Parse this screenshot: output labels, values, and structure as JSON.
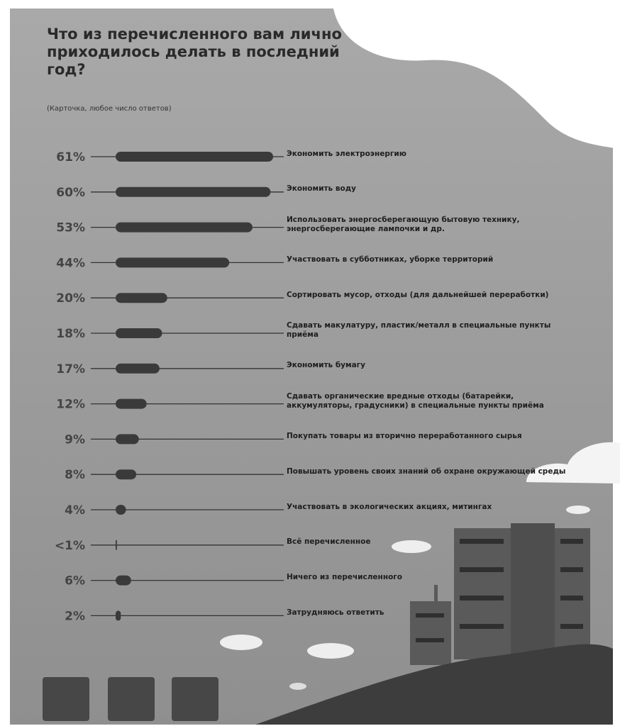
{
  "chart_data": {
    "type": "bar",
    "orientation": "horizontal",
    "title": "Что из перечисленного вам лично приходилось делать в последний год?",
    "subtitle": "(Карточка, любое число ответов)",
    "categories": [
      "Экономить электроэнергию",
      "Экономить воду",
      "Использовать энергосберегающую бытовую технику, энергосберегающие лампочки и др.",
      "Участвовать в субботниках, уборке территорий",
      "Сортировать мусор, отходы (для дальнейшей переработки)",
      "Сдавать макулатуру, пластик/металл в специальные пункты приёма",
      "Экономить бумагу",
      "Сдавать органические вредные отходы (батарейки, аккумуляторы, градусники) в специальные пункты приёма",
      "Покупать товары из вторично переработанного сырья",
      "Повышать уровень своих знаний об охране окружающей среды",
      "Участвовать в экологических акциях, митингах",
      "Всё перечисленное",
      "Ничего из перечисленного",
      "Затрудняюсь ответить"
    ],
    "values": [
      61,
      60,
      53,
      44,
      20,
      18,
      17,
      12,
      9,
      8,
      4,
      0.5,
      6,
      2
    ],
    "value_labels": [
      "61%",
      "60%",
      "53%",
      "44%",
      "20%",
      "18%",
      "17%",
      "12%",
      "9%",
      "8%",
      "4%",
      "<1%",
      "6%",
      "2%"
    ],
    "color": "#3a3a3a"
  }
}
